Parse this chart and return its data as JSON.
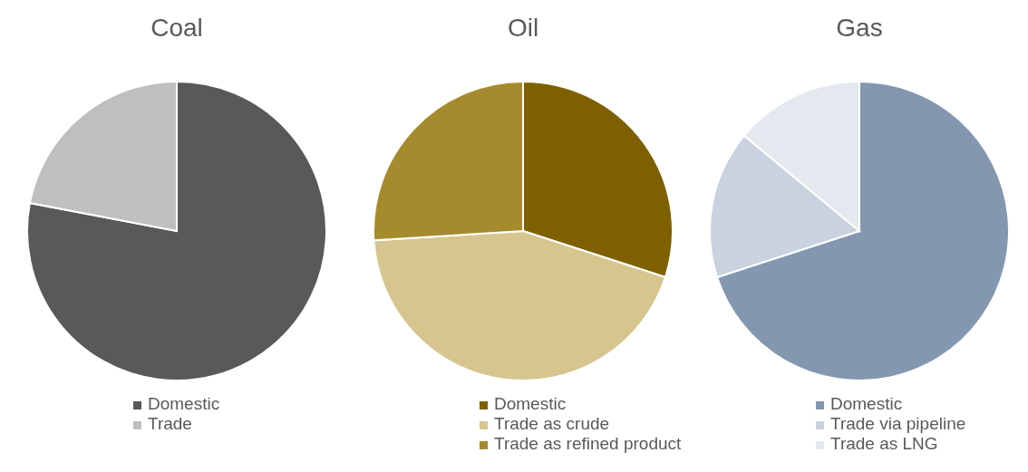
{
  "chart_data": [
    {
      "type": "pie",
      "title": "Coal",
      "categories": [
        "Domestic",
        "Trade"
      ],
      "values": [
        78,
        22
      ],
      "colors": [
        "#595959",
        "#bfbfbf"
      ],
      "legend": "bottom"
    },
    {
      "type": "pie",
      "title": "Oil",
      "categories": [
        "Domestic",
        "Trade as crude",
        "Trade as refined product"
      ],
      "values": [
        30,
        44,
        26
      ],
      "colors": [
        "#7f6000",
        "#d6c58f",
        "#a68b2e"
      ],
      "legend": "bottom"
    },
    {
      "type": "pie",
      "title": "Gas",
      "categories": [
        "Domestic",
        "Trade via pipeline",
        "Trade as LNG"
      ],
      "values": [
        70,
        16,
        14
      ],
      "colors": [
        "#8497b0",
        "#c9d2de",
        "#e4e9f0"
      ],
      "legend": "bottom"
    }
  ]
}
